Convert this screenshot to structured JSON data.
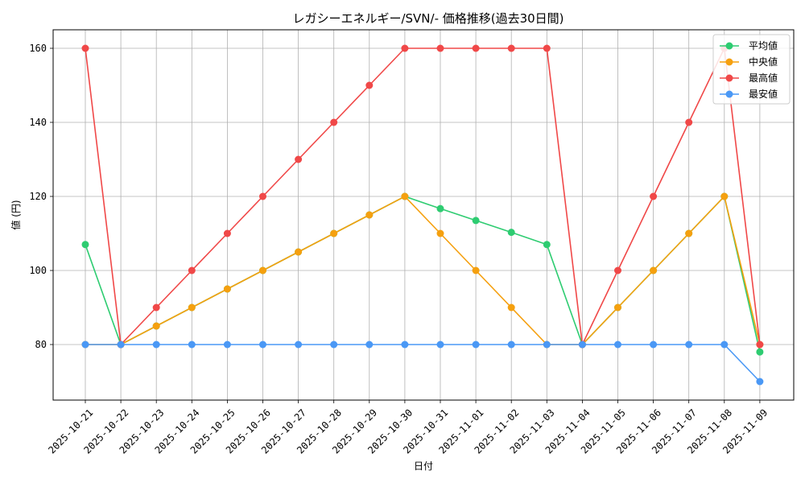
{
  "chart_data": {
    "type": "line",
    "title": "レガシーエネルギー/SVN/- 価格推移(過去30日間)",
    "xlabel": "日付",
    "ylabel": "値 (円)",
    "ylim": [
      65,
      165
    ],
    "yticks": [
      80,
      100,
      120,
      140,
      160
    ],
    "grid": true,
    "legend_position": "top-right",
    "categories": [
      "2025-10-21",
      "2025-10-22",
      "2025-10-23",
      "2025-10-24",
      "2025-10-25",
      "2025-10-26",
      "2025-10-27",
      "2025-10-28",
      "2025-10-29",
      "2025-10-30",
      "2025-10-31",
      "2025-11-01",
      "2025-11-02",
      "2025-11-03",
      "2025-11-04",
      "2025-11-05",
      "2025-11-06",
      "2025-11-07",
      "2025-11-08",
      "2025-11-09"
    ],
    "series": [
      {
        "name": "平均値",
        "color": "#2ecc71",
        "values": [
          107,
          80,
          85,
          90,
          95,
          100,
          105,
          110,
          115,
          120,
          116.7,
          113.5,
          110.3,
          107,
          80,
          90,
          100,
          110,
          120,
          78
        ]
      },
      {
        "name": "中央値",
        "color": "#f5a00f",
        "values": [
          80,
          80,
          85,
          90,
          95,
          100,
          105,
          110,
          115,
          120,
          110,
          100,
          90,
          80,
          80,
          90,
          100,
          110,
          120,
          80
        ]
      },
      {
        "name": "最高値",
        "color": "#f04848",
        "values": [
          160,
          80,
          90,
          100,
          110,
          120,
          130,
          140,
          150,
          160,
          160,
          160,
          160,
          160,
          80,
          100,
          120,
          140,
          160,
          80
        ]
      },
      {
        "name": "最安値",
        "color": "#4a98f5",
        "values": [
          80,
          80,
          80,
          80,
          80,
          80,
          80,
          80,
          80,
          80,
          80,
          80,
          80,
          80,
          80,
          80,
          80,
          80,
          80,
          70
        ]
      }
    ]
  }
}
